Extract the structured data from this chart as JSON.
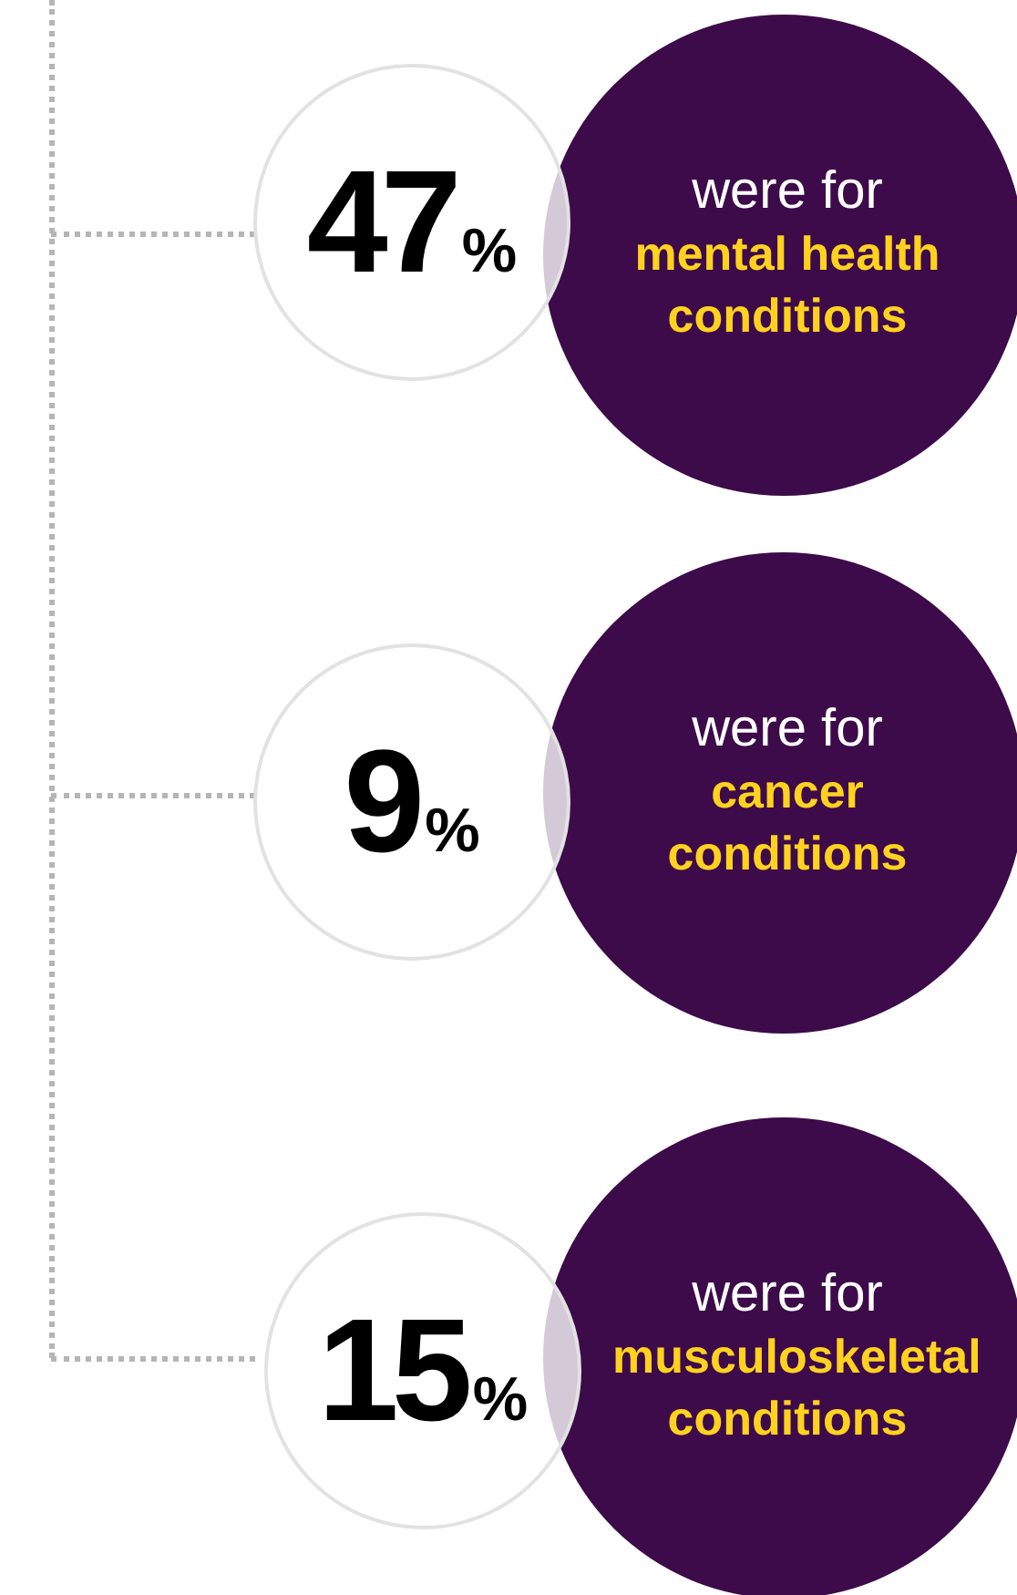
{
  "chart_data": {
    "type": "other",
    "categories": [
      "mental health conditions",
      "cancer conditions",
      "musculoskeletal conditions"
    ],
    "values": [
      47,
      9,
      15
    ],
    "value_labels": [
      "47%",
      "9%",
      "15%"
    ],
    "annotations": [
      "were for",
      "were for",
      "were for"
    ]
  }
}
